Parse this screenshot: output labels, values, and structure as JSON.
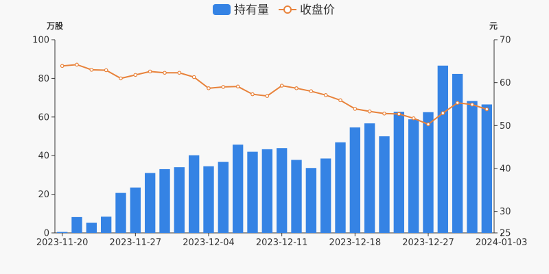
{
  "chart_data": {
    "type": "bar+line",
    "legend": {
      "placement": "top-center",
      "items": [
        {
          "name": "持有量",
          "symbol": "bar",
          "color": "#3583e4"
        },
        {
          "name": "收盘价",
          "symbol": "line-circle",
          "color": "#e8823a"
        }
      ]
    },
    "units": {
      "left": "万股",
      "right": "元"
    },
    "x_tick_labels": [
      "2023-11-20",
      "2023-11-27",
      "2023-12-04",
      "2023-12-11",
      "2023-12-18",
      "2023-12-27",
      "2024-01-03"
    ],
    "y_left": {
      "min": 0,
      "max": 100,
      "ticks": [
        0,
        20,
        40,
        60,
        80,
        100
      ]
    },
    "y_right": {
      "min": 25,
      "max": 70,
      "ticks": [
        25,
        30,
        40,
        50,
        60,
        70
      ]
    },
    "grid": false,
    "series": [
      {
        "name": "持有量",
        "type": "bar",
        "axis": "left",
        "color": "#3583e4",
        "values": [
          0.5,
          8.2,
          5.3,
          8.4,
          20.7,
          23.5,
          31,
          33,
          34,
          40.2,
          34.5,
          36.8,
          45.7,
          42,
          43.3,
          43.9,
          37.8,
          33.6,
          38.5,
          46.9,
          54.6,
          56.7,
          50,
          62.7,
          58.8,
          62.5,
          86.6,
          82.3,
          68.3,
          66.5
        ]
      },
      {
        "name": "收盘价",
        "type": "line",
        "axis": "right",
        "color": "#e8823a",
        "values": [
          63.9,
          64.2,
          63.0,
          62.9,
          61.0,
          61.8,
          62.6,
          62.3,
          62.3,
          61.3,
          58.7,
          59.0,
          59.1,
          57.3,
          56.9,
          59.3,
          58.7,
          58.0,
          57.1,
          55.9,
          53.9,
          53.3,
          52.8,
          52.7,
          51.7,
          50.3,
          52.9,
          55.3,
          54.9,
          53.8
        ]
      }
    ]
  }
}
